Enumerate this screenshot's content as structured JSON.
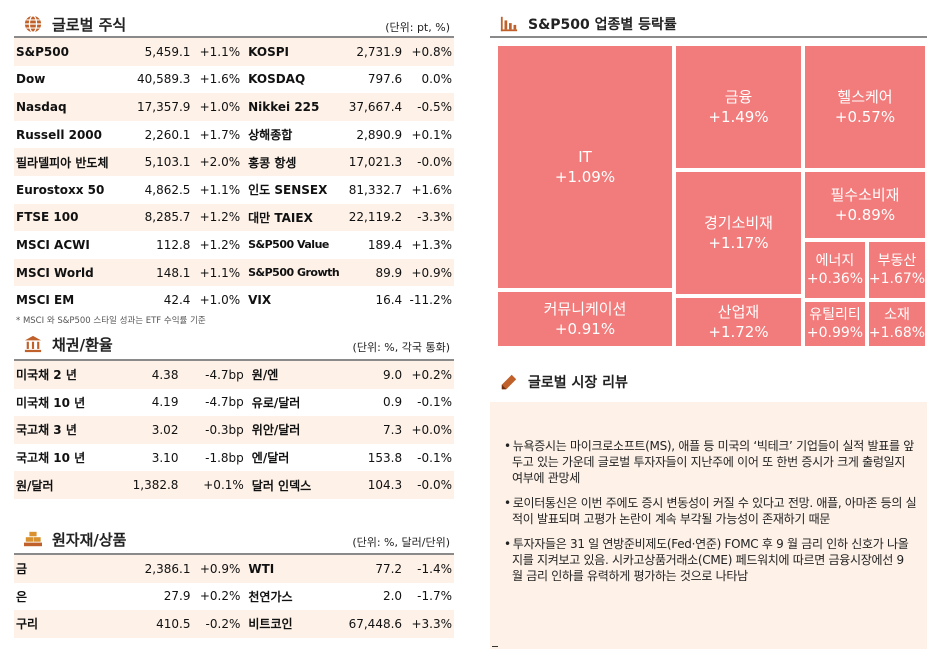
{
  "global_stocks": {
    "title": "글로벌 주식",
    "unit": "(단위: pt, %)",
    "icon": "globe-icon",
    "rows": [
      {
        "n1": "S&P500",
        "v1": "5,459.1",
        "c1": "+1.1%",
        "n2": "KOSPI",
        "v2": "2,731.9",
        "c2": "+0.8%"
      },
      {
        "n1": "Dow",
        "v1": "40,589.3",
        "c1": "+1.6%",
        "n2": "KOSDAQ",
        "v2": "797.6",
        "c2": "0.0%"
      },
      {
        "n1": "Nasdaq",
        "v1": "17,357.9",
        "c1": "+1.0%",
        "n2": "Nikkei 225",
        "v2": "37,667.4",
        "c2": "-0.5%"
      },
      {
        "n1": "Russell 2000",
        "v1": "2,260.1",
        "c1": "+1.7%",
        "n2": "상해종합",
        "v2": "2,890.9",
        "c2": "+0.1%"
      },
      {
        "n1": "필라델피아 반도체",
        "v1": "5,103.1",
        "c1": "+2.0%",
        "n2": "홍콩 항셍",
        "v2": "17,021.3",
        "c2": "-0.0%"
      },
      {
        "n1": "Eurostoxx 50",
        "v1": "4,862.5",
        "c1": "+1.1%",
        "n2": "인도 SENSEX",
        "v2": "81,332.7",
        "c2": "+1.6%"
      },
      {
        "n1": "FTSE 100",
        "v1": "8,285.7",
        "c1": "+1.2%",
        "n2": "대만 TAIEX",
        "v2": "22,119.2",
        "c2": "-3.3%"
      },
      {
        "n1": "MSCI ACWI",
        "v1": "112.8",
        "c1": "+1.2%",
        "n2": "S&P500 Value",
        "v2": "189.4",
        "c2": "+1.3%"
      },
      {
        "n1": "MSCI World",
        "v1": "148.1",
        "c1": "+1.1%",
        "n2": "S&P500 Growth",
        "v2": "89.9",
        "c2": "+0.9%"
      },
      {
        "n1": "MSCI EM",
        "v1": "42.4",
        "c1": "+1.0%",
        "n2": "VIX",
        "v2": "16.4",
        "c2": "-11.2%"
      }
    ],
    "footnote": "* MSCI 와 S&P500 스타일 성과는 ETF 수익률 기준"
  },
  "bonds_fx": {
    "title": "채권/환율",
    "unit": "(단위: %, 각국 통화)",
    "icon": "bank-icon",
    "rows": [
      {
        "n1": "미국채 2 년",
        "v1": "4.38",
        "c1": "-4.7bp",
        "n2": "원/엔",
        "v2": "9.0",
        "c2": "+0.2%"
      },
      {
        "n1": "미국채 10 년",
        "v1": "4.19",
        "c1": "-4.7bp",
        "n2": "유로/달러",
        "v2": "0.9",
        "c2": "-0.1%"
      },
      {
        "n1": "국고채 3 년",
        "v1": "3.02",
        "c1": "-0.3bp",
        "n2": "위안/달러",
        "v2": "7.3",
        "c2": "+0.0%"
      },
      {
        "n1": "국고채 10 년",
        "v1": "3.10",
        "c1": "-1.8bp",
        "n2": "엔/달러",
        "v2": "153.8",
        "c2": "-0.1%"
      },
      {
        "n1": "원/달러",
        "v1": "1,382.8",
        "c1": "+0.1%",
        "n2": "달러 인덱스",
        "v2": "104.3",
        "c2": "-0.0%"
      }
    ]
  },
  "commodities": {
    "title": "원자재/상품",
    "unit": "(단위: %, 달러/단위)",
    "icon": "gold-bars-icon",
    "rows": [
      {
        "n1": "금",
        "v1": "2,386.1",
        "c1": "+0.9%",
        "n2": "WTI",
        "v2": "77.2",
        "c2": "-1.4%"
      },
      {
        "n1": "은",
        "v1": "27.9",
        "c1": "+0.2%",
        "n2": "천연가스",
        "v2": "2.0",
        "c2": "-1.7%"
      },
      {
        "n1": "구리",
        "v1": "410.5",
        "c1": "-0.2%",
        "n2": "비트코인",
        "v2": "67,448.6",
        "c2": "+3.3%"
      }
    ]
  },
  "sector_treemap": {
    "title": "S&P500 업종별 등락률",
    "icon": "bar-chart-icon",
    "tile_color": "#f27b7b",
    "tiles": [
      {
        "id": "it",
        "name": "IT",
        "change": "+1.09%"
      },
      {
        "id": "financials",
        "name": "금융",
        "change": "+1.49%"
      },
      {
        "id": "healthcare",
        "name": "헬스케어",
        "change": "+0.57%"
      },
      {
        "id": "consumer-disc",
        "name": "경기소비재",
        "change": "+1.17%"
      },
      {
        "id": "consumer-staples",
        "name": "필수소비재",
        "change": "+0.89%"
      },
      {
        "id": "communication",
        "name": "커뮤니케이션",
        "change": "+0.91%"
      },
      {
        "id": "industrials",
        "name": "산업재",
        "change": "+1.72%"
      },
      {
        "id": "energy",
        "name": "에너지",
        "change": "+0.36%"
      },
      {
        "id": "real-estate",
        "name": "부동산",
        "change": "+1.67%"
      },
      {
        "id": "utilities",
        "name": "유틸리티",
        "change": "+0.99%"
      },
      {
        "id": "materials",
        "name": "소재",
        "change": "+1.68%"
      }
    ]
  },
  "market_review": {
    "title": "글로벌 시장 리뷰",
    "icon": "pencil-icon",
    "items": [
      "뉴욕증시는 마이크로소프트(MS), 애플 등 미국의 ‘빅테크’ 기업들이 실적 발표를 앞두고 있는 가운데 글로벌 투자자들이 지난주에 이어 또 한번 증시가 크게 출렁일지 여부에 관망세",
      "로이터통신은 이번 주에도 증시 변동성이 커질 수 있다고 전망. 애플, 아마존 등의 실적이 발표되며 고평가 논란이 계속 부각될 가능성이 존재하기 때문",
      "투자자들은 31 일 연방준비제도(Fed·연준) FOMC 후 9 월 금리 인하 신호가 나올지를 지켜보고 있음. 시카고상품거래소(CME) 페드워치에 따르면 금융시장에선 9 월 금리 인하를 유력하게 평가하는 것으로 나타남"
    ]
  }
}
